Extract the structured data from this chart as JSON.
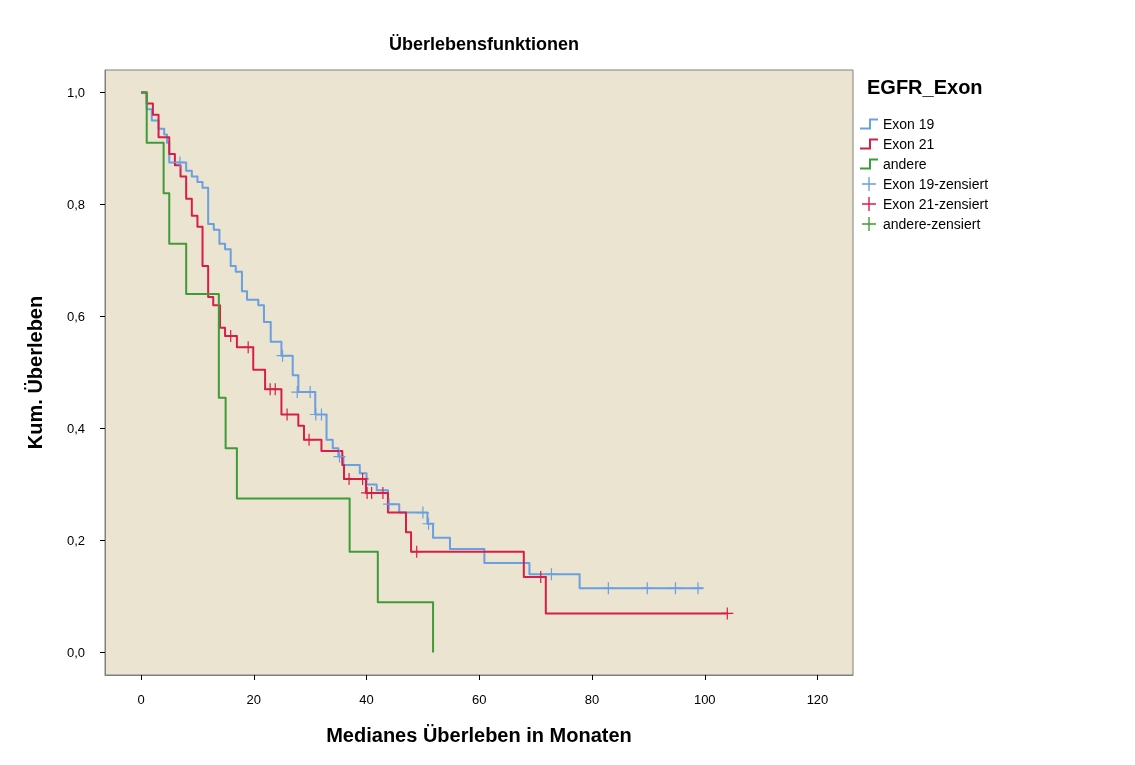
{
  "chart_data": {
    "type": "step",
    "title": "Überlebensfunktionen",
    "xlabel": "Medianes Überleben in Monaten",
    "ylabel": "Kum. Überleben",
    "legend_title": "EGFR_Exon",
    "xlim": [
      -6.4,
      126.3
    ],
    "xticks": [
      0,
      20,
      40,
      60,
      80,
      100,
      120
    ],
    "ylim": [
      -0.04,
      1.04
    ],
    "yticks": [
      {
        "value": 0,
        "label": "0,0"
      },
      {
        "value": 0.2,
        "label": "0,2"
      },
      {
        "value": 0.4,
        "label": "0,4"
      },
      {
        "value": 0.6,
        "label": "0,6"
      },
      {
        "value": 0.8,
        "label": "0,8"
      },
      {
        "value": 1,
        "label": "1,0"
      }
    ],
    "grid": false,
    "legend": "right",
    "series": [
      {
        "name": "Exon 19",
        "color": "#6a9fe0",
        "x": [
          0,
          1.0,
          1.9,
          3.1,
          4.1,
          4.6,
          5.0,
          8.0,
          9.0,
          10.0,
          10.9,
          11.9,
          12.9,
          13.9,
          14.9,
          15.9,
          16.8,
          17.9,
          18.8,
          20.8,
          21.8,
          23.0,
          24.9,
          26.9,
          27.9,
          30.9,
          32.9,
          34.0,
          35.0,
          35.9,
          38.8,
          40.0,
          41.8,
          43.8,
          45.8,
          50.8,
          51.8,
          54.8,
          60.9,
          68.9,
          77.8,
          99.6
        ],
        "values": [
          1.0,
          0.97,
          0.95,
          0.935,
          0.925,
          0.91,
          0.875,
          0.86,
          0.85,
          0.84,
          0.83,
          0.765,
          0.755,
          0.73,
          0.72,
          0.69,
          0.68,
          0.645,
          0.63,
          0.62,
          0.59,
          0.555,
          0.53,
          0.495,
          0.465,
          0.425,
          0.38,
          0.365,
          0.35,
          0.335,
          0.32,
          0.3,
          0.29,
          0.265,
          0.25,
          0.23,
          0.205,
          0.185,
          0.16,
          0.14,
          0.115,
          0.115
        ]
      },
      {
        "name": "Exon 21",
        "color": "#d81e48",
        "x": [
          0,
          1.0,
          2.1,
          3.1,
          5.0,
          6.0,
          7.0,
          8.0,
          9.0,
          10.0,
          10.9,
          11.9,
          12.8,
          14.0,
          14.9,
          17.0,
          19.9,
          22.0,
          24.9,
          27.9,
          28.9,
          32.0,
          35.7,
          36.0,
          39.9,
          43.8,
          47.0,
          47.9,
          67.9,
          71.8,
          104.0
        ],
        "values": [
          1.0,
          0.98,
          0.96,
          0.92,
          0.89,
          0.87,
          0.85,
          0.81,
          0.78,
          0.76,
          0.69,
          0.635,
          0.62,
          0.58,
          0.565,
          0.545,
          0.505,
          0.47,
          0.425,
          0.405,
          0.38,
          0.36,
          0.335,
          0.31,
          0.285,
          0.25,
          0.215,
          0.18,
          0.135,
          0.07,
          0.07
        ]
      },
      {
        "name": "andere",
        "color": "#3f9b38",
        "x": [
          0,
          1.0,
          4.0,
          5.0,
          8.0,
          13.8,
          15.0,
          17.0,
          37.0,
          42.0,
          51.8
        ],
        "values": [
          1.0,
          0.91,
          0.82,
          0.73,
          0.64,
          0.455,
          0.365,
          0.275,
          0.18,
          0.09,
          0
        ]
      },
      {
        "name": "Exon 19-zensiert",
        "type": "scatter",
        "marker": "cross",
        "color": "#6a9fe0",
        "x": [
          6.9,
          25.1,
          27.7,
          30.0,
          31.0,
          32.0,
          35.2,
          44.0,
          50.0,
          51.0,
          72.8,
          82.9,
          89.8,
          94.8,
          98.8
        ],
        "values": [
          0.875,
          0.53,
          0.465,
          0.465,
          0.425,
          0.425,
          0.35,
          0.265,
          0.25,
          0.23,
          0.14,
          0.115,
          0.115,
          0.115,
          0.115
        ]
      },
      {
        "name": "Exon 21-zensiert",
        "type": "scatter",
        "marker": "cross",
        "color": "#d81e48",
        "x": [
          15.9,
          19.0,
          22.9,
          23.8,
          25.9,
          29.8,
          36.9,
          39.3,
          40.1,
          40.9,
          42.9,
          48.9,
          70.9,
          104.0
        ],
        "values": [
          0.565,
          0.545,
          0.47,
          0.47,
          0.425,
          0.38,
          0.31,
          0.31,
          0.285,
          0.285,
          0.285,
          0.18,
          0.135,
          0.07
        ]
      },
      {
        "name": "andere-zensiert",
        "type": "scatter",
        "marker": "cross",
        "color": "#3f9b38"
      }
    ]
  }
}
